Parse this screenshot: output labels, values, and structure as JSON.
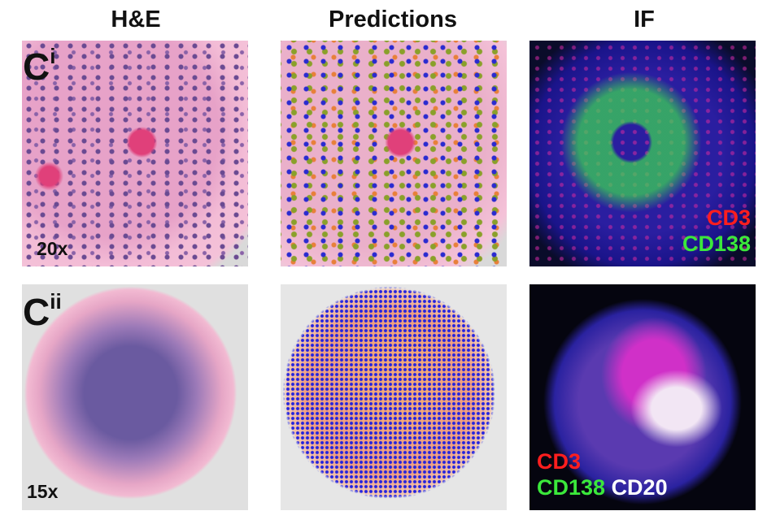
{
  "columns": [
    "H&E",
    "Predictions",
    "IF"
  ],
  "rows": [
    {
      "label": "C",
      "superscript": "i",
      "magnification": "20x",
      "if_labels": [
        [
          "CD3"
        ],
        [
          "CD138"
        ]
      ]
    },
    {
      "label": "C",
      "superscript": "ii",
      "magnification": "15x",
      "if_labels": [
        [
          "CD3"
        ],
        [
          "CD138",
          "CD20"
        ]
      ]
    }
  ]
}
